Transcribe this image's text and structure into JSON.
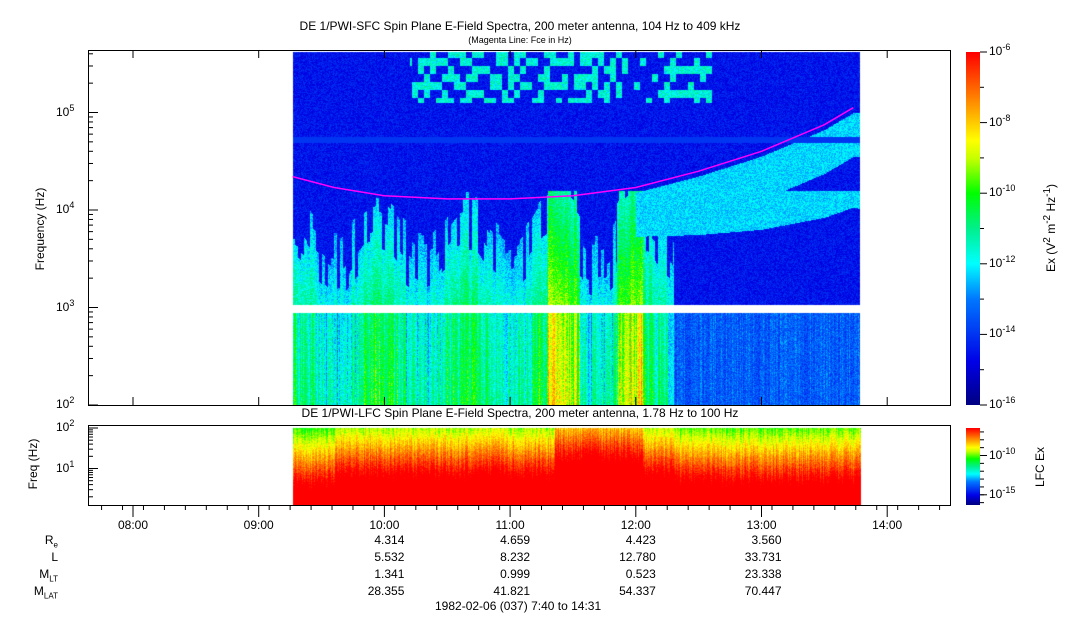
{
  "chart_data": {
    "type": "heatmap",
    "top_panel": {
      "title": "DE 1/PWI-SFC  Spin Plane E-Field Spectra, 200 meter antenna, 104 Hz to 409 kHz",
      "subtitle": "(Magenta Line: Fce in Hz)",
      "ylabel": "Frequency (Hz)",
      "yscale": "log",
      "ylim": [
        100,
        409000
      ],
      "yticks": [
        {
          "v": 100,
          "base": "10",
          "exp": "2"
        },
        {
          "v": 1000,
          "base": "10",
          "exp": "3"
        },
        {
          "v": 10000,
          "base": "10",
          "exp": "4"
        },
        {
          "v": 100000,
          "base": "10",
          "exp": "5"
        }
      ],
      "data_time_range_hours": [
        9.27,
        13.78
      ],
      "colorbar": {
        "label_main": "Ex (V",
        "label_parts": [
          "2",
          " m",
          "-2",
          " Hz",
          "-1",
          ")"
        ],
        "range_log10": [
          -16,
          -6
        ],
        "ticks": [
          {
            "exp": "-6",
            "v": -6
          },
          {
            "exp": "-8",
            "v": -8
          },
          {
            "exp": "-10",
            "v": -10
          },
          {
            "exp": "-12",
            "v": -12
          },
          {
            "exp": "-14",
            "v": -14
          },
          {
            "exp": "-16",
            "v": -16
          }
        ]
      },
      "fce_line": {
        "name": "Fce",
        "color": "#ff00ff",
        "points": [
          [
            9.27,
            22000
          ],
          [
            9.6,
            17000
          ],
          [
            10.0,
            14000
          ],
          [
            10.5,
            13000
          ],
          [
            11.0,
            13000
          ],
          [
            11.5,
            14000
          ],
          [
            12.0,
            17000
          ],
          [
            12.5,
            25000
          ],
          [
            13.0,
            40000
          ],
          [
            13.5,
            75000
          ],
          [
            13.73,
            112000
          ]
        ]
      }
    },
    "bottom_panel": {
      "title": "DE 1/PWI-LFC  Spin Plane E-Field Spectra, 200 meter antenna, 1.78 Hz to 100 Hz",
      "ylabel": "Freq (Hz)",
      "yscale": "log",
      "ylim": [
        1.78,
        100
      ],
      "yticks": [
        {
          "v": 10,
          "base": "10",
          "exp": "1"
        },
        {
          "v": 100,
          "base": "10",
          "exp": "2"
        }
      ],
      "colorbar": {
        "label": "LFC Ex",
        "range_log10": [
          -16.3,
          -6.5
        ],
        "ticks": [
          {
            "exp": "-10",
            "v": -10
          },
          {
            "exp": "-15",
            "v": -15
          }
        ]
      }
    },
    "xaxis": {
      "range_hours": [
        7.667,
        14.517
      ],
      "ticks": [
        {
          "h": 8,
          "label": "08:00"
        },
        {
          "h": 9,
          "label": "09:00"
        },
        {
          "h": 10,
          "label": "10:00"
        },
        {
          "h": 11,
          "label": "11:00"
        },
        {
          "h": 12,
          "label": "12:00"
        },
        {
          "h": 13,
          "label": "13:00"
        },
        {
          "h": 14,
          "label": "14:00"
        }
      ]
    },
    "ephemeris": {
      "rows": [
        {
          "label": "R",
          "sub": "e",
          "values": [
            "",
            "",
            "4.314",
            "4.659",
            "4.423",
            "3.560",
            ""
          ]
        },
        {
          "label": "L",
          "sub": "",
          "values": [
            "",
            "",
            "5.532",
            "8.232",
            "12.780",
            "33.731",
            ""
          ]
        },
        {
          "label": "M",
          "sub": "LT",
          "values": [
            "",
            "",
            "1.341",
            "0.999",
            "0.523",
            "23.338",
            ""
          ]
        },
        {
          "label": "M",
          "sub": "LAT",
          "values": [
            "",
            "",
            "28.355",
            "41.821",
            "54.337",
            "70.447",
            ""
          ]
        }
      ]
    },
    "date_range": "1982-02-06 (037) 7:40 to 14:31"
  }
}
